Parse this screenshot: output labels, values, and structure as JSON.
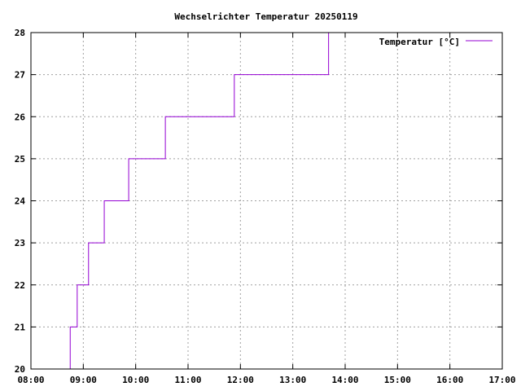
{
  "chart_data": {
    "type": "line",
    "title": "Wechselrichter Temperatur 20250119",
    "xlabel": "",
    "ylabel": "",
    "x_tick_labels": [
      "08:00",
      "09:00",
      "10:00",
      "11:00",
      "12:00",
      "13:00",
      "14:00",
      "15:00",
      "16:00",
      "17:00"
    ],
    "y_tick_labels": [
      "20",
      "21",
      "22",
      "23",
      "24",
      "25",
      "26",
      "27",
      "28"
    ],
    "xlim": [
      "08:00",
      "17:00"
    ],
    "ylim": [
      20,
      28
    ],
    "grid": true,
    "legend_position": "top-right",
    "step": true,
    "series": [
      {
        "name": "Temperatur [°C]",
        "color": "#9400d3",
        "points": [
          {
            "x": "08:43",
            "y": 20
          },
          {
            "x": "08:45",
            "y": 21
          },
          {
            "x": "08:53",
            "y": 22
          },
          {
            "x": "09:06",
            "y": 23
          },
          {
            "x": "09:24",
            "y": 24
          },
          {
            "x": "09:52",
            "y": 25
          },
          {
            "x": "10:34",
            "y": 26
          },
          {
            "x": "11:53",
            "y": 27
          },
          {
            "x": "13:41",
            "y": 28
          }
        ]
      }
    ]
  }
}
